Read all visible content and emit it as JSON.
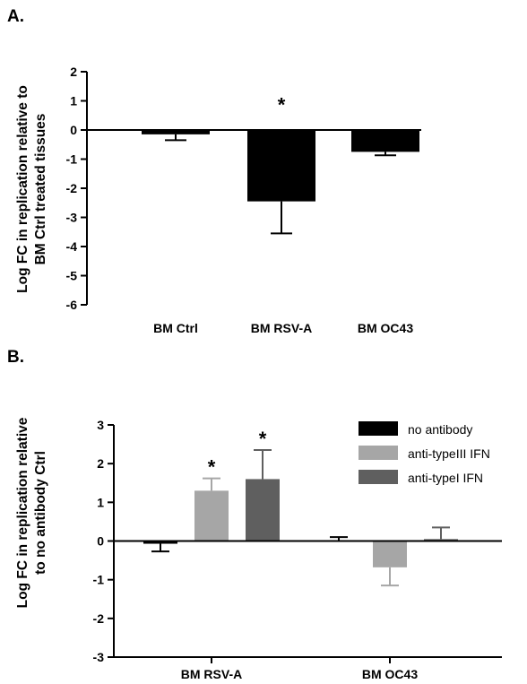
{
  "chart_data": [
    {
      "type": "bar",
      "panel_label": "A.",
      "title": "",
      "ylabel": "Log FC in replication relative to BM Ctrl treated tissues",
      "ylabel_lines": [
        "Log FC in replication relative to",
        "BM Ctrl treated tissues"
      ],
      "ylim": [
        -6,
        2
      ],
      "yticks": [
        2,
        1,
        0,
        -1,
        -2,
        -3,
        -4,
        -5,
        -6
      ],
      "categories": [
        "BM Ctrl",
        "BM RSV-A",
        "BM OC43"
      ],
      "series": [
        {
          "color": "#000000",
          "values": [
            -0.15,
            -2.45,
            -0.75
          ],
          "error": [
            0.2,
            1.1,
            0.12
          ]
        }
      ],
      "annotations": [
        {
          "category": "BM RSV-A",
          "text": "*"
        }
      ]
    },
    {
      "type": "bar",
      "panel_label": "B.",
      "title": "",
      "ylabel": "Log FC in replication relative to no antibody Ctrl",
      "ylabel_lines": [
        "Log FC in replication relative",
        "to no antibody Ctrl"
      ],
      "ylim": [
        -3,
        3
      ],
      "yticks": [
        3,
        2,
        1,
        0,
        -1,
        -2,
        -3
      ],
      "categories": [
        "BM RSV-A",
        "BM OC43"
      ],
      "legend_position": "top-right",
      "series": [
        {
          "name": "no antibody",
          "color": "#000000",
          "values": [
            -0.07,
            0.02
          ],
          "error": [
            0.2,
            0.08
          ]
        },
        {
          "name": "anti-typeIII IFN",
          "color": "#a6a6a6",
          "values": [
            1.3,
            -0.68
          ],
          "error": [
            0.32,
            0.47
          ]
        },
        {
          "name": "anti-typeI IFN",
          "color": "#5f5f5f",
          "values": [
            1.6,
            0.05
          ],
          "error": [
            0.75,
            0.3
          ]
        }
      ],
      "annotations": [
        {
          "category": "BM RSV-A",
          "series": "anti-typeIII IFN",
          "text": "*"
        },
        {
          "category": "BM RSV-A",
          "series": "anti-typeI IFN",
          "text": "*"
        }
      ]
    }
  ]
}
